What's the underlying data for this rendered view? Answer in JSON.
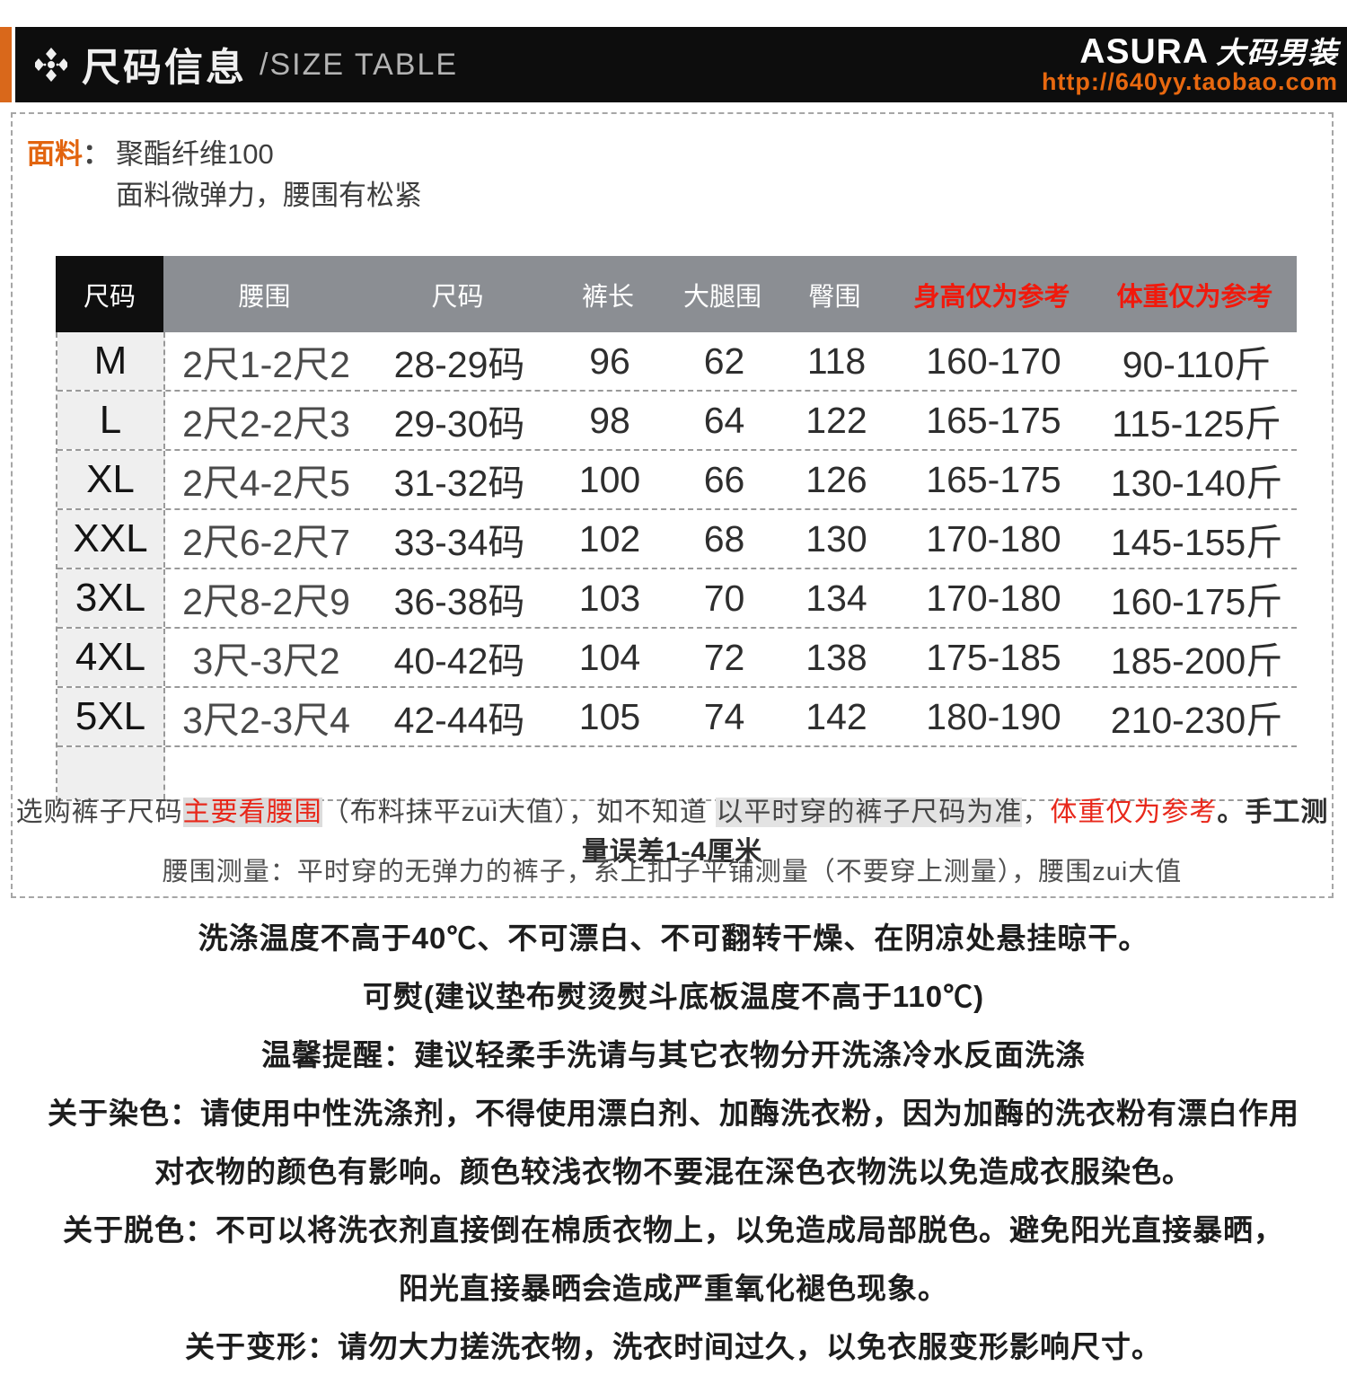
{
  "header": {
    "title_cn": "尺码信息",
    "title_en": "/SIZE TABLE",
    "brand": "ASURA",
    "brand_suffix": "大码男装",
    "url": "http://640yy.taobao.com",
    "bar_color": "#0d0d0d",
    "accent_color": "#d9681b",
    "url_color": "#e8680f"
  },
  "fabric": {
    "label": "面料",
    "colon": "：",
    "line1": "聚酯纤维100",
    "line2": "面料微弹力，腰围有松紧"
  },
  "size_table": {
    "columns": [
      "尺码",
      "腰围",
      "尺码",
      "裤长",
      "大腿围",
      "臀围",
      "身高仅为参考",
      "体重仅为参考"
    ],
    "header_bg": "#8b8e93",
    "header_first_bg": "#0f0f0f",
    "header_red_color": "#f1190c",
    "first_col_bg": "#efefef",
    "rows": [
      {
        "cells": [
          "M",
          "2尺1-2尺2",
          "28-29码",
          "96",
          "62",
          "118",
          "160-170",
          "90-110斤"
        ]
      },
      {
        "cells": [
          "L",
          "2尺2-2尺3",
          "29-30码",
          "98",
          "64",
          "122",
          "165-175",
          "115-125斤"
        ]
      },
      {
        "cells": [
          "XL",
          "2尺4-2尺5",
          "31-32码",
          "100",
          "66",
          "126",
          "165-175",
          "130-140斤"
        ]
      },
      {
        "cells": [
          "XXL",
          "2尺6-2尺7",
          "33-34码",
          "102",
          "68",
          "130",
          "170-180",
          "145-155斤"
        ]
      },
      {
        "cells": [
          "3XL",
          "2尺8-2尺9",
          "36-38码",
          "103",
          "70",
          "134",
          "170-180",
          "160-175斤"
        ]
      },
      {
        "cells": [
          "4XL",
          "3尺-3尺2",
          "40-42码",
          "104",
          "72",
          "138",
          "175-185",
          "185-200斤"
        ]
      },
      {
        "cells": [
          "5XL",
          "3尺2-3尺4",
          "42-44码",
          "105",
          "74",
          "142",
          "180-190",
          "210-230斤"
        ]
      }
    ]
  },
  "notes": {
    "line1_parts": [
      "选购裤子尺码",
      "主要看腰围",
      "（布料抹平zui大值），如不知道 ",
      "以平时穿的裤子尺码为准",
      "，",
      "体重仅为参考",
      "。手工测量误差1-4厘米"
    ],
    "line2": "腰围测量：平时穿的无弹力的裤子，系上扣子平铺测量（不要穿上测量），腰围zui大值"
  },
  "care": {
    "lines": [
      "洗涤温度不高于40℃、不可漂白、不可翻转干燥、在阴凉处悬挂晾干。",
      "可熨(建议垫布熨烫熨斗底板温度不高于110℃)",
      "温馨提醒：建议轻柔手洗请与其它衣物分开洗涤冷水反面洗涤",
      "关于染色：请使用中性洗涤剂，不得使用漂白剂、加酶洗衣粉，因为加酶的洗衣粉有漂白作用",
      "对衣物的颜色有影响。颜色较浅衣物不要混在深色衣物洗以免造成衣服染色。",
      "关于脱色：不可以将洗衣剂直接倒在棉质衣物上，以免造成局部脱色。避免阳光直接暴晒，",
      "阳光直接暴晒会造成严重氧化褪色现象。",
      "关于变形：请勿大力搓洗衣物，洗衣时间过久，以免衣服变形影响尺寸。"
    ]
  }
}
